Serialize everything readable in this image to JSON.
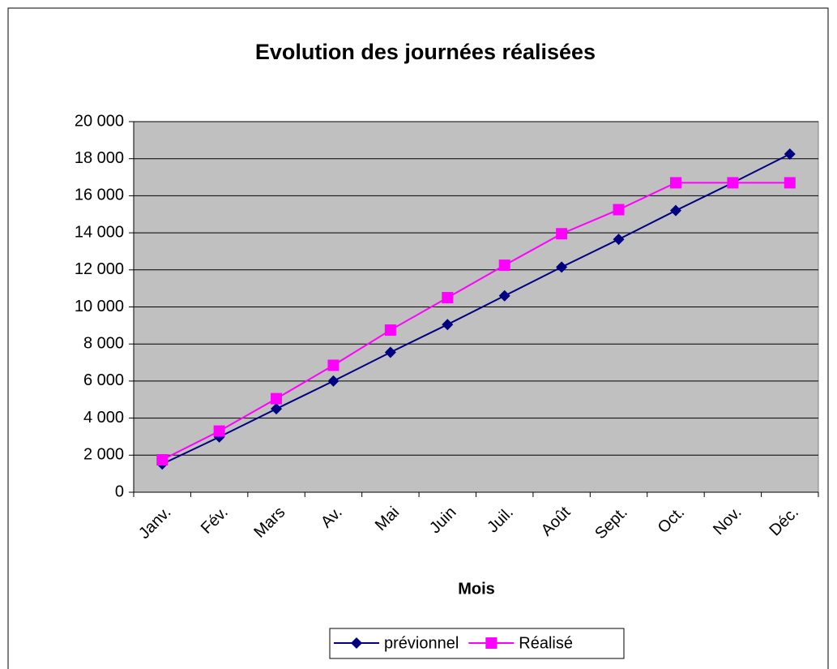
{
  "chart_data": {
    "type": "line",
    "title": "Evolution des journées réalisées",
    "x_label": "Mois",
    "categories": [
      "Janv.",
      "Fév.",
      "Mars",
      "Av.",
      "Mai",
      "Juin",
      "Juil.",
      "Août",
      "Sept.",
      "Oct.",
      "Nov.",
      "Déc."
    ],
    "series": [
      {
        "name": "prévionnel",
        "color": "#000080",
        "marker": "diamond",
        "values": [
          1520,
          2980,
          4500,
          6000,
          7550,
          9050,
          10600,
          12150,
          13650,
          15200,
          16700,
          18250
        ]
      },
      {
        "name": "Réalisé",
        "color": "#ff00ff",
        "marker": "square",
        "values": [
          1750,
          3300,
          5050,
          6850,
          8750,
          10500,
          12250,
          13950,
          15250,
          16700,
          16700,
          16700
        ]
      }
    ],
    "ylim": [
      0,
      20000
    ],
    "yticks": [
      {
        "value": 0,
        "label": "0"
      },
      {
        "value": 2000,
        "label": "2 000"
      },
      {
        "value": 4000,
        "label": "4 000"
      },
      {
        "value": 6000,
        "label": "6 000"
      },
      {
        "value": 8000,
        "label": "8 000"
      },
      {
        "value": 10000,
        "label": "10 000"
      },
      {
        "value": 12000,
        "label": "12 000"
      },
      {
        "value": 14000,
        "label": "14 000"
      },
      {
        "value": 16000,
        "label": "16 000"
      },
      {
        "value": 18000,
        "label": "18 000"
      },
      {
        "value": 20000,
        "label": "20 000"
      }
    ],
    "grid": true,
    "legend": "bottom"
  }
}
